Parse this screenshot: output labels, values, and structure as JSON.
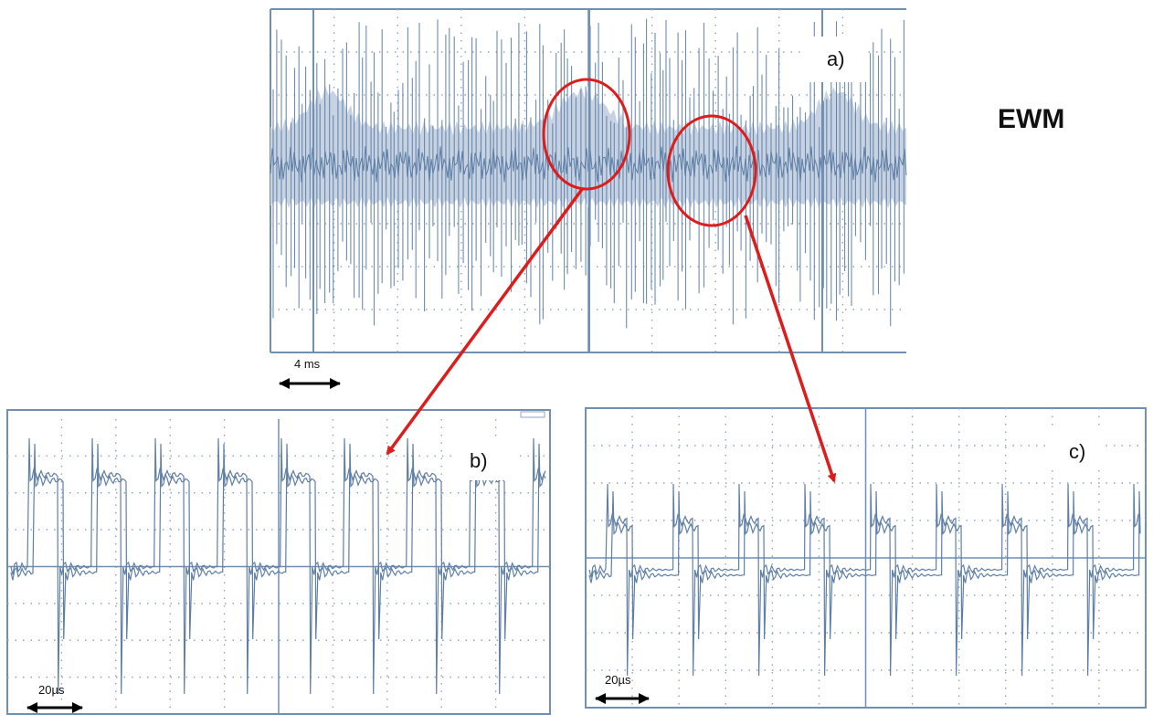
{
  "title": "EWM",
  "panels": {
    "a": {
      "label": "a)",
      "scale_label": "4 ms"
    },
    "b": {
      "label": "b)",
      "scale_label": "20µs"
    },
    "c": {
      "label": "c)",
      "scale_label": "20µs"
    }
  },
  "colors": {
    "trace": "#5f7fa6",
    "trace_fill": "#c7d3e3",
    "grid_line": "#6f8fb3",
    "grid_dot": "#8fa6c2",
    "highlight": "#dd1c1c",
    "text": "#111111"
  }
}
